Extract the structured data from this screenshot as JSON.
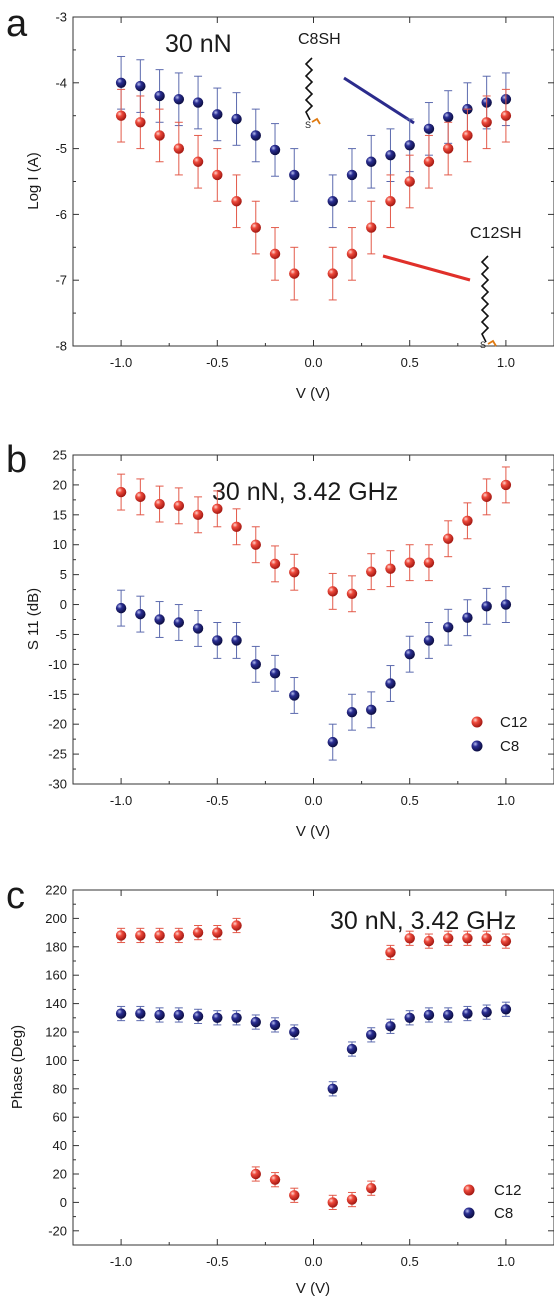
{
  "colors": {
    "c12": "#e8302a",
    "c12_err": "#e35a4a",
    "c8": "#1f1f7a",
    "c8_err": "#5c6aae",
    "line_c8": "#2b2b8c",
    "line_c12": "#e0302a"
  },
  "chart_data": [
    {
      "panel": "a",
      "type": "scatter",
      "title": "30 nN",
      "xlabel": "V (V)",
      "ylabel": "Log I (A)",
      "xlim": [
        -1.25,
        1.25
      ],
      "ylim": [
        -8,
        -3
      ],
      "xticks": [
        -1.0,
        -0.5,
        0.0,
        0.5,
        1.0
      ],
      "xtick_labels": [
        "-1.0",
        "-0.5",
        "0.0",
        "0.5",
        "1.0"
      ],
      "yticks": [
        -8,
        -7,
        -6,
        -5,
        -4,
        -3
      ],
      "ytick_labels": [
        "-8",
        "-7",
        "-6",
        "-5",
        "-4",
        "-3"
      ],
      "grid": false,
      "annotations": [
        "C8SH",
        "C12SH"
      ],
      "series": [
        {
          "key": "c8",
          "x": [
            -1.0,
            -0.9,
            -0.8,
            -0.7,
            -0.6,
            -0.5,
            -0.4,
            -0.3,
            -0.2,
            -0.1,
            0.1,
            0.2,
            0.3,
            0.4,
            0.5,
            0.6,
            0.7,
            0.8,
            0.9,
            1.0
          ],
          "y": [
            -4.0,
            -4.05,
            -4.2,
            -4.25,
            -4.3,
            -4.48,
            -4.55,
            -4.8,
            -5.02,
            -5.4,
            -5.8,
            -5.4,
            -5.2,
            -5.1,
            -4.95,
            -4.7,
            -4.52,
            -4.4,
            -4.3,
            -4.25
          ],
          "err": [
            0.4,
            0.4,
            0.4,
            0.4,
            0.4,
            0.4,
            0.4,
            0.4,
            0.4,
            0.4,
            0.4,
            0.4,
            0.4,
            0.4,
            0.4,
            0.4,
            0.4,
            0.4,
            0.4,
            0.4
          ]
        },
        {
          "key": "c12",
          "x": [
            -1.0,
            -0.9,
            -0.8,
            -0.7,
            -0.6,
            -0.5,
            -0.4,
            -0.3,
            -0.2,
            -0.1,
            0.1,
            0.2,
            0.3,
            0.4,
            0.5,
            0.6,
            0.7,
            0.8,
            0.9,
            1.0
          ],
          "y": [
            -4.5,
            -4.6,
            -4.8,
            -5.0,
            -5.2,
            -5.4,
            -5.8,
            -6.2,
            -6.6,
            -6.9,
            -6.9,
            -6.6,
            -6.2,
            -5.8,
            -5.5,
            -5.2,
            -5.0,
            -4.8,
            -4.6,
            -4.5
          ],
          "err": [
            0.4,
            0.4,
            0.4,
            0.4,
            0.4,
            0.4,
            0.4,
            0.4,
            0.4,
            0.4,
            0.4,
            0.4,
            0.4,
            0.4,
            0.4,
            0.4,
            0.4,
            0.4,
            0.4,
            0.4
          ]
        }
      ]
    },
    {
      "panel": "b",
      "type": "scatter",
      "title": "30 nN, 3.42 GHz",
      "xlabel": "V (V)",
      "ylabel": "S 11 (dB)",
      "xlim": [
        -1.25,
        1.25
      ],
      "ylim": [
        -30,
        25
      ],
      "xticks": [
        -1.0,
        -0.5,
        0.0,
        0.5,
        1.0
      ],
      "xtick_labels": [
        "-1.0",
        "-0.5",
        "0.0",
        "0.5",
        "1.0"
      ],
      "yticks": [
        -30,
        -25,
        -20,
        -15,
        -10,
        -5,
        0,
        5,
        10,
        15,
        20,
        25
      ],
      "ytick_labels": [
        "-30",
        "-25",
        "-20",
        "-15",
        "-10",
        "-5",
        "0",
        "5",
        "10",
        "15",
        "20",
        "25"
      ],
      "grid": false,
      "legend": [
        "C12",
        "C8"
      ],
      "legend_position": "bottom-right",
      "series": [
        {
          "key": "c12",
          "name": "C12",
          "x": [
            -1.0,
            -0.9,
            -0.8,
            -0.7,
            -0.6,
            -0.5,
            -0.4,
            -0.3,
            -0.2,
            -0.1,
            0.1,
            0.2,
            0.3,
            0.4,
            0.5,
            0.6,
            0.7,
            0.8,
            0.9,
            1.0
          ],
          "y": [
            18.8,
            18.0,
            16.8,
            16.5,
            15.0,
            16.0,
            13.0,
            10.0,
            6.8,
            5.4,
            2.2,
            1.8,
            5.5,
            6.0,
            7.0,
            7.0,
            11.0,
            14.0,
            18.0,
            20.0
          ],
          "err": [
            3,
            3,
            3,
            3,
            3,
            3,
            3,
            3,
            3,
            3,
            3,
            3,
            3,
            3,
            3,
            3,
            3,
            3,
            3,
            3
          ]
        },
        {
          "key": "c8",
          "name": "C8",
          "x": [
            -1.0,
            -0.9,
            -0.8,
            -0.7,
            -0.6,
            -0.5,
            -0.4,
            -0.3,
            -0.2,
            -0.1,
            0.1,
            0.2,
            0.3,
            0.4,
            0.5,
            0.6,
            0.7,
            0.8,
            0.9,
            1.0
          ],
          "y": [
            -0.6,
            -1.6,
            -2.5,
            -3.0,
            -4.0,
            -6.0,
            -6.0,
            -10.0,
            -11.5,
            -15.2,
            -23.0,
            -18.0,
            -17.6,
            -13.2,
            -8.3,
            -6.0,
            -3.8,
            -2.2,
            -0.3,
            0.0
          ],
          "err": [
            3,
            3,
            3,
            3,
            3,
            3,
            3,
            3,
            3,
            3,
            3,
            3,
            3,
            3,
            3,
            3,
            3,
            3,
            3,
            3
          ]
        }
      ]
    },
    {
      "panel": "c",
      "type": "scatter",
      "title": "30 nN, 3.42 GHz",
      "xlabel": "V (V)",
      "ylabel": "Phase (Deg)",
      "xlim": [
        -1.25,
        1.25
      ],
      "ylim": [
        -30,
        220
      ],
      "xticks": [
        -1.0,
        -0.5,
        0.0,
        0.5,
        1.0
      ],
      "xtick_labels": [
        "-1.0",
        "-0.5",
        "0.0",
        "0.5",
        "1.0"
      ],
      "yticks": [
        -20,
        0,
        20,
        40,
        60,
        80,
        100,
        120,
        140,
        160,
        180,
        200,
        220
      ],
      "ytick_labels": [
        "-20",
        "0",
        "20",
        "40",
        "60",
        "80",
        "100",
        "120",
        "140",
        "160",
        "180",
        "200",
        "220"
      ],
      "grid": false,
      "legend": [
        "C12",
        "C8"
      ],
      "legend_position": "bottom-right",
      "series": [
        {
          "key": "c12",
          "name": "C12",
          "x": [
            -1.0,
            -0.9,
            -0.8,
            -0.7,
            -0.6,
            -0.5,
            -0.4,
            -0.3,
            -0.2,
            -0.1,
            0.1,
            0.2,
            0.3,
            0.4,
            0.5,
            0.6,
            0.7,
            0.8,
            0.9,
            1.0
          ],
          "y": [
            188,
            188,
            188,
            188,
            190,
            190,
            195,
            20,
            16,
            5,
            0,
            2,
            10,
            176,
            186,
            184,
            186,
            186,
            186,
            184
          ],
          "err": [
            5,
            5,
            5,
            5,
            5,
            5,
            5,
            5,
            5,
            5,
            5,
            5,
            5,
            5,
            5,
            5,
            5,
            5,
            5,
            5
          ]
        },
        {
          "key": "c8",
          "name": "C8",
          "x": [
            -1.0,
            -0.9,
            -0.8,
            -0.7,
            -0.6,
            -0.5,
            -0.4,
            -0.3,
            -0.2,
            -0.1,
            0.1,
            0.2,
            0.3,
            0.4,
            0.5,
            0.6,
            0.7,
            0.8,
            0.9,
            1.0
          ],
          "y": [
            133,
            133,
            132,
            132,
            131,
            130,
            130,
            127,
            125,
            120,
            80,
            108,
            118,
            124,
            130,
            132,
            132,
            133,
            134,
            136
          ],
          "err": [
            5,
            5,
            5,
            5,
            5,
            5,
            5,
            5,
            5,
            5,
            5,
            5,
            5,
            5,
            5,
            5,
            5,
            5,
            5,
            5
          ]
        }
      ]
    }
  ]
}
